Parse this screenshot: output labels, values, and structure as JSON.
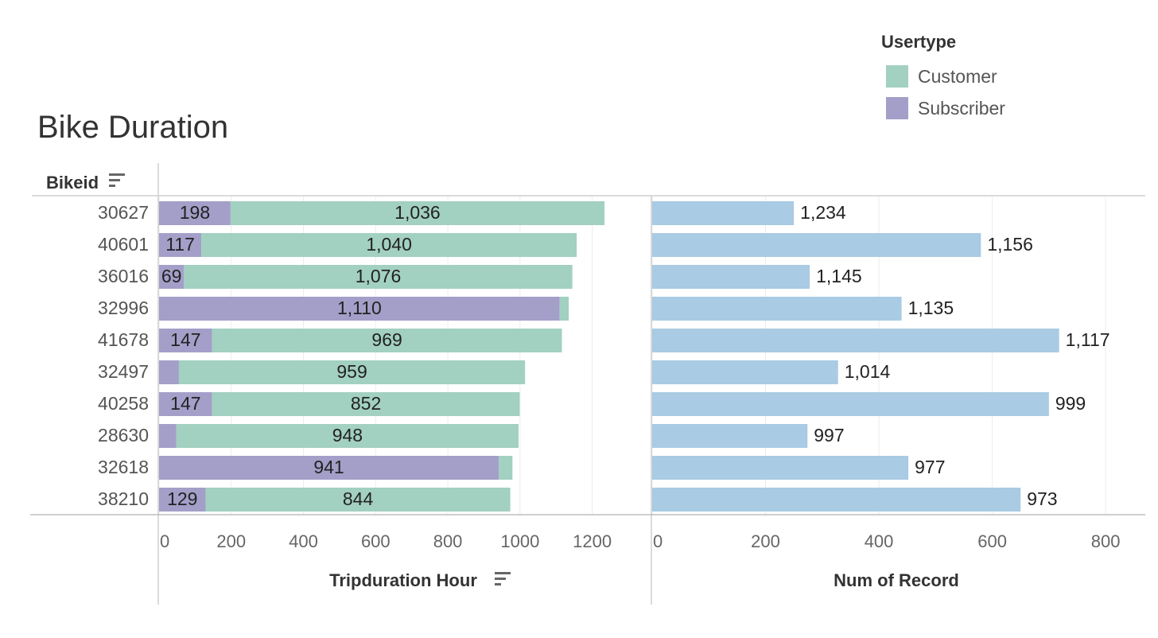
{
  "title": "Bike Duration",
  "legend": {
    "title": "Usertype",
    "items": [
      {
        "label": "Customer",
        "color": "#a2d0c1"
      },
      {
        "label": "Subscriber",
        "color": "#a39fc9"
      }
    ]
  },
  "chart_data": [
    {
      "type": "bar",
      "stacked": true,
      "orientation": "horizontal",
      "row_header": "Bikeid",
      "xlabel": "Tripduration Hour",
      "categories": [
        "30627",
        "40601",
        "36016",
        "32996",
        "41678",
        "32497",
        "40258",
        "28630",
        "32618",
        "38210"
      ],
      "series": [
        {
          "name": "Subscriber",
          "color": "#a39fc9",
          "values": [
            198,
            117,
            69,
            1110,
            147,
            55,
            147,
            48,
            941,
            129
          ],
          "labels": [
            "198",
            "117",
            "69",
            "1,110",
            "147",
            "",
            "147",
            "",
            "941",
            "129"
          ]
        },
        {
          "name": "Customer",
          "color": "#a2d0c1",
          "values": [
            1036,
            1040,
            1076,
            25,
            969,
            959,
            852,
            948,
            38,
            844
          ],
          "labels": [
            "1,036",
            "1,040",
            "1,076",
            "",
            "969",
            "959",
            "852",
            "948",
            "",
            "844"
          ]
        }
      ],
      "xlim": [
        0,
        1300
      ],
      "xticks": [
        0,
        200,
        400,
        600,
        800,
        1000,
        1200
      ],
      "grid": true
    },
    {
      "type": "bar",
      "orientation": "horizontal",
      "xlabel": "Num of Record",
      "categories": [
        "30627",
        "40601",
        "36016",
        "32996",
        "41678",
        "32497",
        "40258",
        "28630",
        "32618",
        "38210"
      ],
      "values": [
        250,
        580,
        278,
        440,
        718,
        328,
        700,
        274,
        452,
        650
      ],
      "labels": [
        "1,234",
        "1,156",
        "1,145",
        "1,135",
        "1,117",
        "1,014",
        "999",
        "997",
        "977",
        "973"
      ],
      "color": "#a9cbe4",
      "xlim": [
        0,
        870
      ],
      "xticks": [
        0,
        200,
        400,
        600,
        800
      ],
      "grid": true
    }
  ]
}
